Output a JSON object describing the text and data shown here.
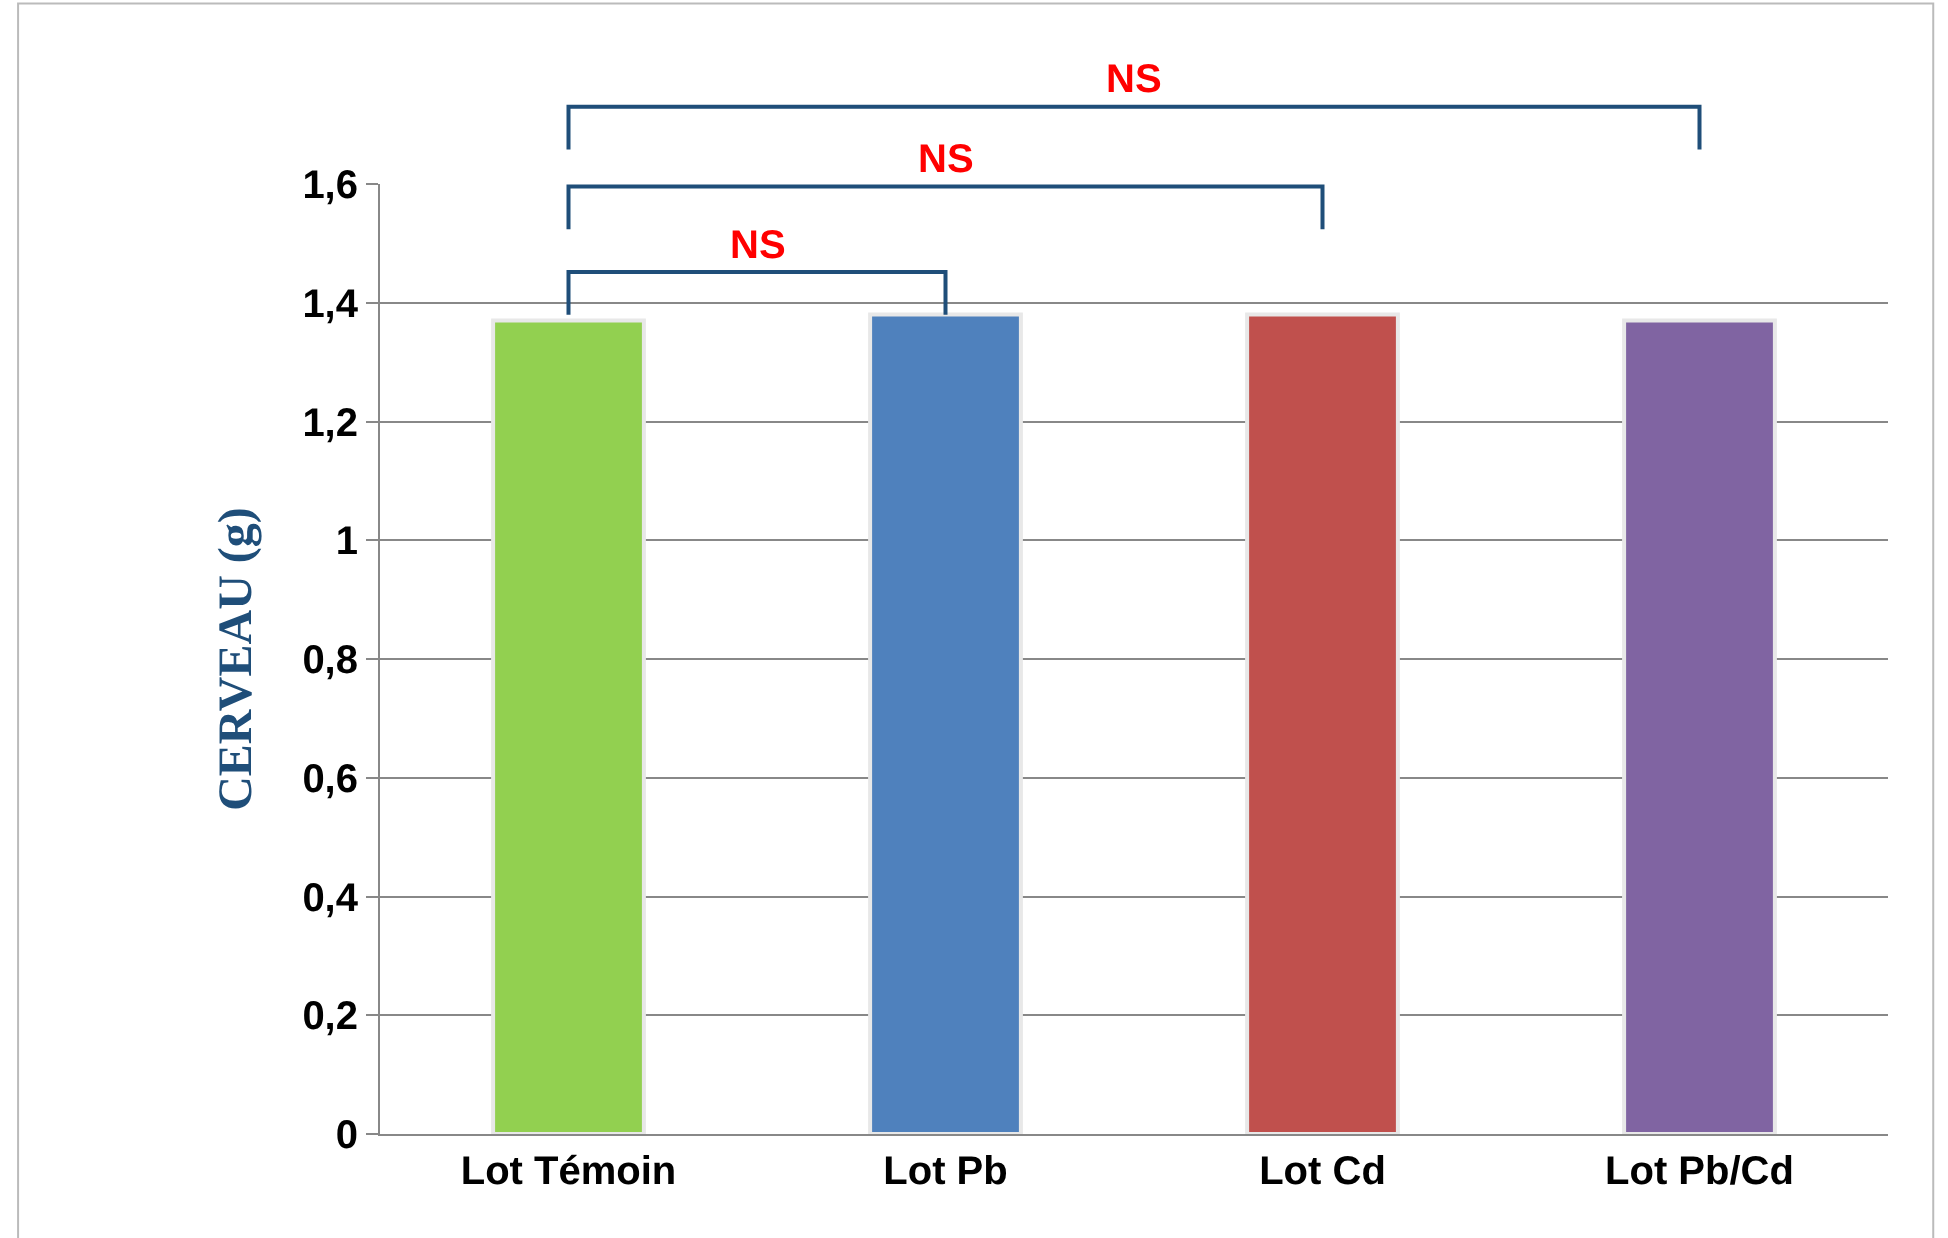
{
  "chart_data": {
    "type": "bar",
    "ylabel": "CERVEAU (g)",
    "categories": [
      "Lot Témoin",
      "Lot Pb",
      "Lot Cd",
      "Lot Pb/Cd"
    ],
    "values": [
      1.37,
      1.38,
      1.38,
      1.37
    ],
    "colors": [
      "#92d050",
      "#4f81bd",
      "#c0504d",
      "#8064a2"
    ],
    "ylim": [
      0,
      1.6
    ],
    "yticks": [
      0,
      {
        "value": 0.2,
        "label": "0,2"
      },
      {
        "value": 0.4,
        "label": "0,4"
      },
      {
        "value": 0.6,
        "label": "0,6"
      },
      {
        "value": 0.8,
        "label": "0,8"
      },
      1,
      {
        "value": 1.2,
        "label": "1,2"
      },
      {
        "value": 1.4,
        "label": "1,4"
      },
      {
        "value": 1.6,
        "label": "1,6"
      }
    ],
    "grid": "y",
    "annotations": [
      "NS",
      "NS",
      "NS"
    ]
  }
}
